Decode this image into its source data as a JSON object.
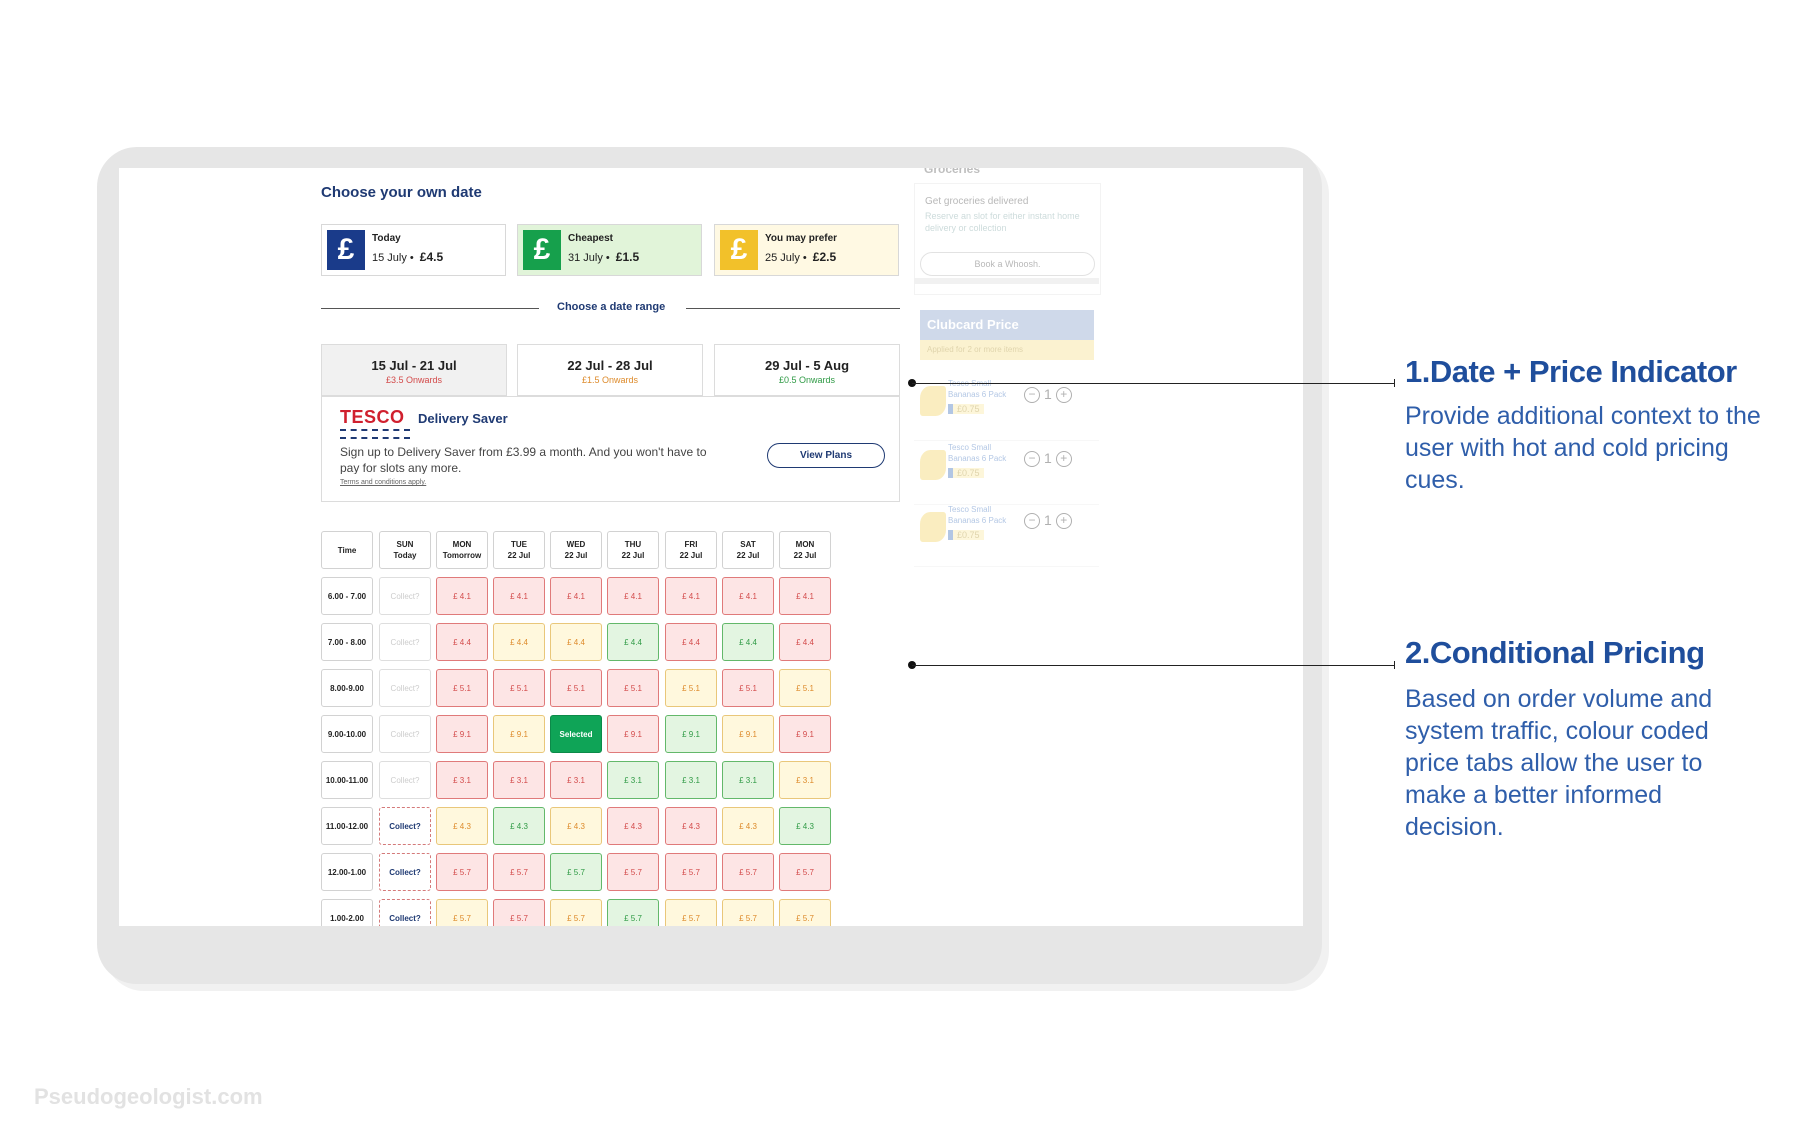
{
  "header": {
    "title": "Choose your own date"
  },
  "quick_picks": [
    {
      "label": "Today",
      "date": "15 July",
      "price": "£4.5",
      "icon": "pound-icon",
      "color": "#1a3b8a",
      "bg": "#ffffff"
    },
    {
      "label": "Cheapest",
      "date": "31 July",
      "price": "£1.5",
      "icon": "pound-icon",
      "color": "#16a04c",
      "bg": "#e1f4d9"
    },
    {
      "label": "You may prefer",
      "date": "25 July",
      "price": "£2.5",
      "icon": "pound-icon",
      "color": "#f2c12a",
      "bg": "#fff9e3"
    }
  ],
  "range": {
    "label": "Choose a date range"
  },
  "weeks": [
    {
      "range": "15 Jul - 21 Jul",
      "sub": "£3.5 Onwards",
      "sub_color": "#d34a4a",
      "bg": "#f1f1f1"
    },
    {
      "range": "22 Jul - 28 Jul",
      "sub": "£1.5 Onwards",
      "sub_color": "#dd8a2a",
      "bg": "#ffffff"
    },
    {
      "range": "29 Jul - 5 Aug",
      "sub": "£0.5 Onwards",
      "sub_color": "#2f9a45",
      "bg": "#ffffff"
    }
  ],
  "saver": {
    "logo": "TESCO",
    "title": "Delivery Saver",
    "text": "Sign up to Delivery Saver from £3.99 a month. And you won't have to pay for slots any more.",
    "terms": "Terms and conditions apply.",
    "button": "View Plans"
  },
  "grid": {
    "time_header": "Time",
    "days": [
      {
        "day": "SUN",
        "date": "Today"
      },
      {
        "day": "MON",
        "date": "Tomorrow"
      },
      {
        "day": "TUE",
        "date": "22 Jul"
      },
      {
        "day": "WED",
        "date": "22 Jul"
      },
      {
        "day": "THU",
        "date": "22 Jul"
      },
      {
        "day": "FRI",
        "date": "22 Jul"
      },
      {
        "day": "SAT",
        "date": "22 Jul"
      },
      {
        "day": "MON",
        "date": "22 Jul"
      }
    ],
    "rows": [
      {
        "time": "6.00 - 7.00",
        "cells": [
          [
            "Collect?",
            "collect"
          ],
          [
            "£ 4.1",
            "red"
          ],
          [
            "£ 4.1",
            "red"
          ],
          [
            "£ 4.1",
            "red"
          ],
          [
            "£ 4.1",
            "red"
          ],
          [
            "£ 4.1",
            "red"
          ],
          [
            "£ 4.1",
            "red"
          ],
          [
            "£ 4.1",
            "red"
          ]
        ]
      },
      {
        "time": "7.00 - 8.00",
        "cells": [
          [
            "Collect?",
            "collect"
          ],
          [
            "£ 4.4",
            "red"
          ],
          [
            "£ 4.4",
            "orange"
          ],
          [
            "£ 4.4",
            "orange"
          ],
          [
            "£ 4.4",
            "green"
          ],
          [
            "£ 4.4",
            "red"
          ],
          [
            "£ 4.4",
            "green"
          ],
          [
            "£ 4.4",
            "red"
          ]
        ]
      },
      {
        "time": "8.00-9.00",
        "cells": [
          [
            "Collect?",
            "collect"
          ],
          [
            "£ 5.1",
            "red"
          ],
          [
            "£ 5.1",
            "red"
          ],
          [
            "£ 5.1",
            "red"
          ],
          [
            "£ 5.1",
            "red"
          ],
          [
            "£ 5.1",
            "orange"
          ],
          [
            "£ 5.1",
            "red"
          ],
          [
            "£ 5.1",
            "orange"
          ]
        ]
      },
      {
        "time": "9.00-10.00",
        "cells": [
          [
            "Collect?",
            "collect"
          ],
          [
            "£ 9.1",
            "red"
          ],
          [
            "£ 9.1",
            "orange"
          ],
          [
            "Selected",
            "selected"
          ],
          [
            "£ 9.1",
            "red"
          ],
          [
            "£ 9.1",
            "green"
          ],
          [
            "£ 9.1",
            "orange"
          ],
          [
            "£ 9.1",
            "red"
          ]
        ]
      },
      {
        "time": "10.00-11.00",
        "cells": [
          [
            "Collect?",
            "collect"
          ],
          [
            "£ 3.1",
            "red"
          ],
          [
            "£ 3.1",
            "red"
          ],
          [
            "£ 3.1",
            "red"
          ],
          [
            "£ 3.1",
            "green"
          ],
          [
            "£ 3.1",
            "green"
          ],
          [
            "£ 3.1",
            "green"
          ],
          [
            "£ 3.1",
            "orange"
          ]
        ]
      },
      {
        "time": "11.00-12.00",
        "cells": [
          [
            "Collect?",
            "collect-on"
          ],
          [
            "£ 4.3",
            "orange"
          ],
          [
            "£ 4.3",
            "green"
          ],
          [
            "£ 4.3",
            "orange"
          ],
          [
            "£ 4.3",
            "red"
          ],
          [
            "£ 4.3",
            "red"
          ],
          [
            "£ 4.3",
            "orange"
          ],
          [
            "£ 4.3",
            "green"
          ]
        ]
      },
      {
        "time": "12.00-1.00",
        "cells": [
          [
            "Collect?",
            "collect-on"
          ],
          [
            "£ 5.7",
            "red"
          ],
          [
            "£ 5.7",
            "red"
          ],
          [
            "£ 5.7",
            "green"
          ],
          [
            "£ 5.7",
            "red"
          ],
          [
            "£ 5.7",
            "red"
          ],
          [
            "£ 5.7",
            "red"
          ],
          [
            "£ 5.7",
            "red"
          ]
        ]
      },
      {
        "time": "1.00-2.00",
        "cells": [
          [
            "Collect?",
            "collect-on"
          ],
          [
            "£ 5.7",
            "orange"
          ],
          [
            "£ 5.7",
            "red"
          ],
          [
            "£ 5.7",
            "orange"
          ],
          [
            "£ 5.7",
            "green"
          ],
          [
            "£ 5.7",
            "orange"
          ],
          [
            "£ 5.7",
            "orange"
          ],
          [
            "£ 5.7",
            "orange"
          ]
        ]
      }
    ]
  },
  "side_panel": {
    "heading": "Groceries",
    "card_title": "Get groceries delivered",
    "card_desc": "Reserve an slot for either instant home delivery or collection",
    "card_button": "Book a Whoosh.",
    "clubcard": "Clubcard Price",
    "clubcard_sub": "Applied for 2 or more items",
    "products": [
      {
        "name": "Tesco Small Bananas 6 Pack",
        "price": "£0.75",
        "qty": "1"
      },
      {
        "name": "Tesco Small Bananas 6 Pack",
        "price": "£0.75",
        "qty": "1"
      },
      {
        "name": "Tesco Small Bananas 6 Pack",
        "price": "£0.75",
        "qty": "1"
      }
    ]
  },
  "annotations": [
    {
      "title": "1.Date + Price Indicator",
      "body": "Provide additional context to the user with hot and cold pricing cues."
    },
    {
      "title": "2.Conditional Pricing",
      "body": "Based on order volume and system traffic, colour coded price tabs allow the user to make a better informed decision."
    }
  ],
  "watermark": "Pseudogeologist.com"
}
